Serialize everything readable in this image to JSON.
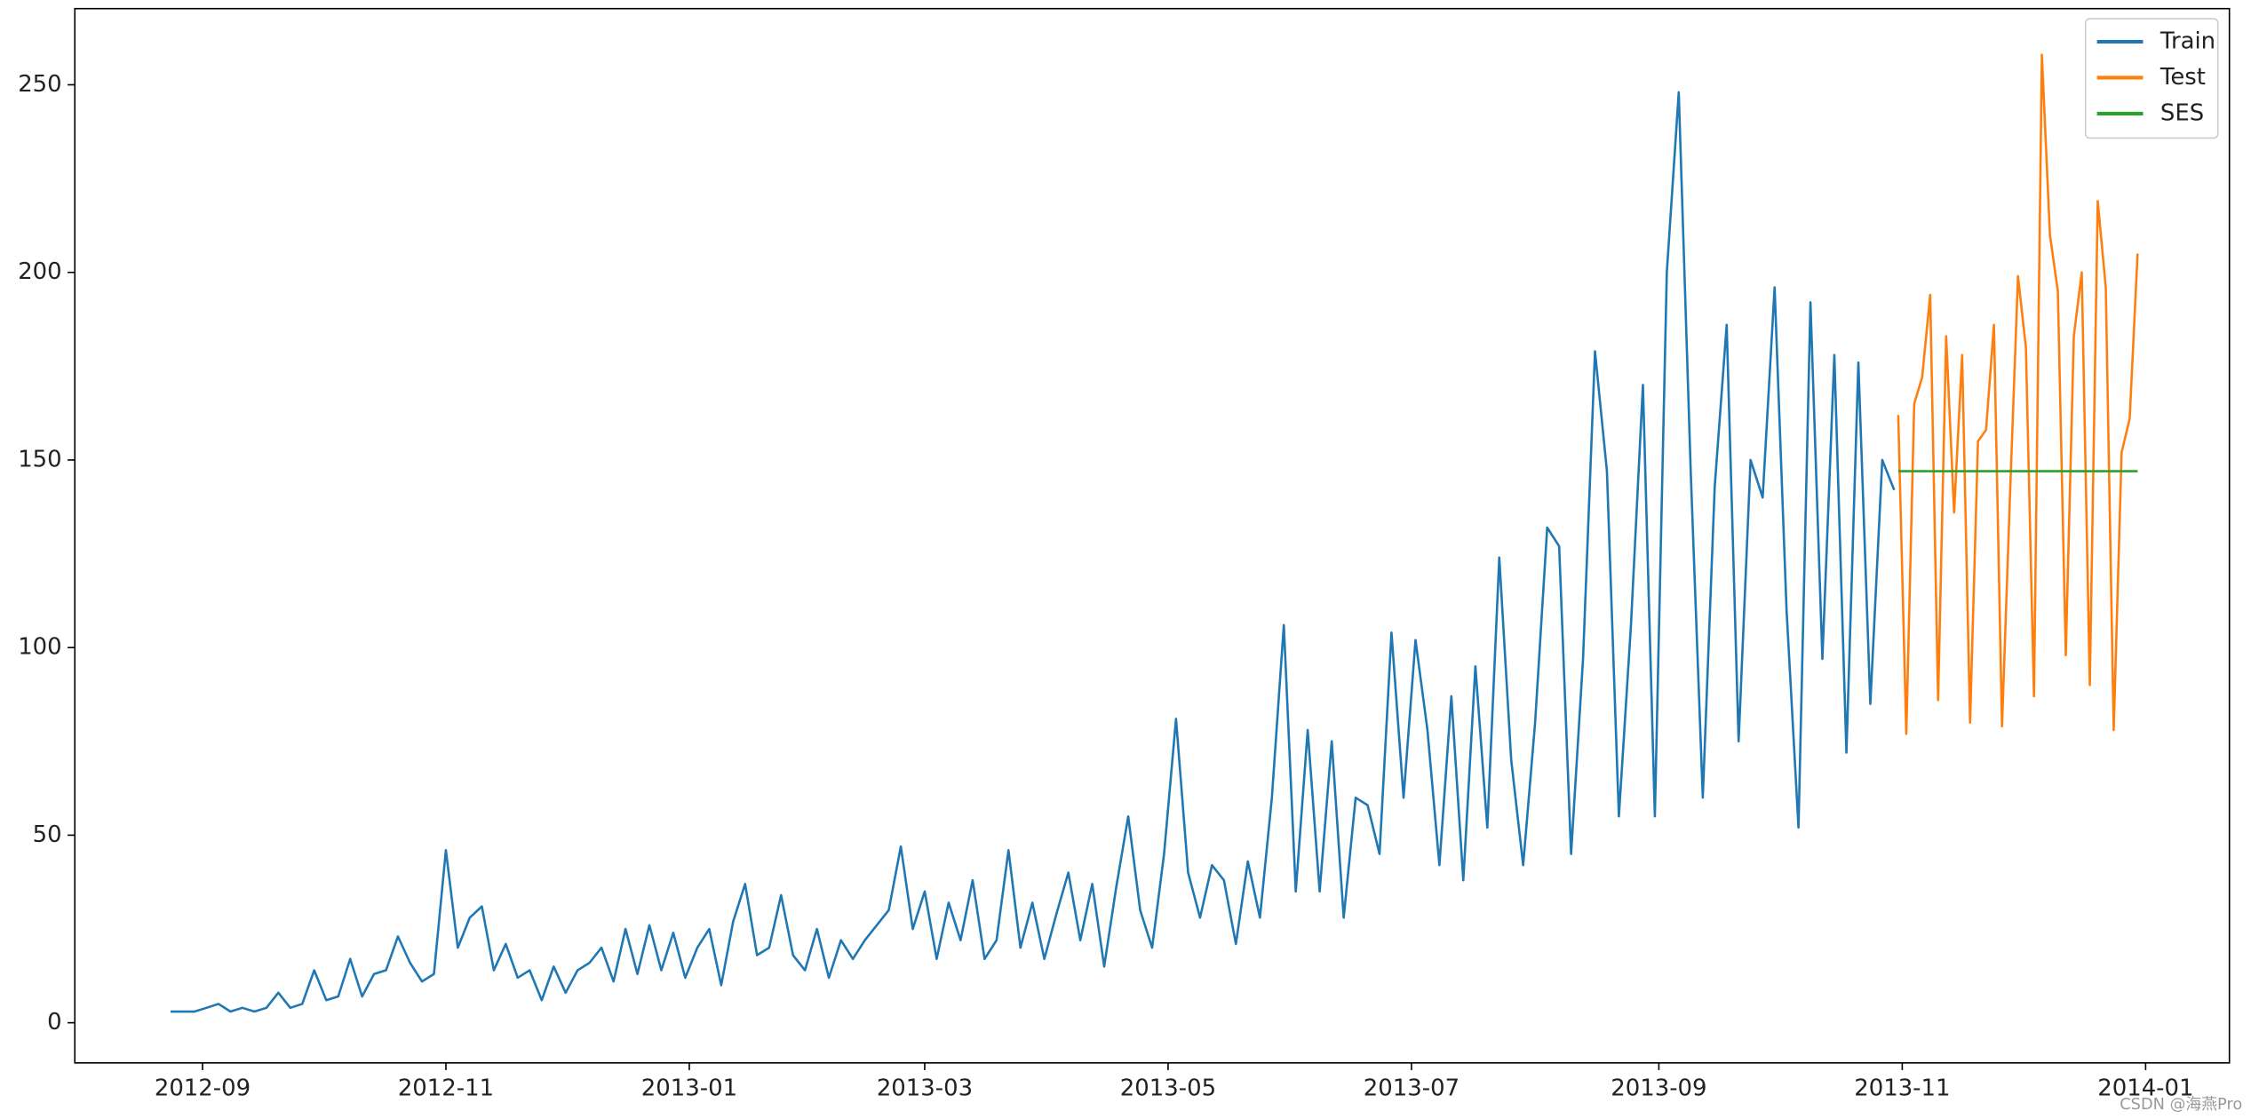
{
  "chart_data": {
    "type": "line",
    "xlim": [
      15552,
      16092
    ],
    "ylim": [
      -10.7,
      270.3
    ],
    "xticks": [
      {
        "value": 15584,
        "label": "2012-09"
      },
      {
        "value": 15645,
        "label": "2012-11"
      },
      {
        "value": 15706,
        "label": "2013-01"
      },
      {
        "value": 15765,
        "label": "2013-03"
      },
      {
        "value": 15826,
        "label": "2013-05"
      },
      {
        "value": 15887,
        "label": "2013-07"
      },
      {
        "value": 15949,
        "label": "2013-09"
      },
      {
        "value": 16010,
        "label": "2013-11"
      },
      {
        "value": 16071,
        "label": "2014-01"
      }
    ],
    "yticks": [
      0,
      50,
      100,
      150,
      200,
      250
    ],
    "legend": "upper right",
    "watermark": "CSDN @海燕Pro",
    "series": [
      {
        "name": "Train",
        "color": "#1f77b4",
        "x": [
          15576,
          15579,
          15582,
          15585,
          15588,
          15591,
          15594,
          15597,
          15600,
          15603,
          15606,
          15609,
          15612,
          15615,
          15618,
          15621,
          15624,
          15627,
          15630,
          15633,
          15636,
          15639,
          15642,
          15645,
          15648,
          15651,
          15654,
          15657,
          15660,
          15663,
          15666,
          15669,
          15672,
          15675,
          15678,
          15681,
          15684,
          15687,
          15690,
          15693,
          15696,
          15699,
          15702,
          15705,
          15708,
          15711,
          15714,
          15717,
          15720,
          15723,
          15726,
          15729,
          15732,
          15735,
          15738,
          15741,
          15744,
          15747,
          15750,
          15753,
          15756,
          15759,
          15762,
          15765,
          15768,
          15771,
          15774,
          15777,
          15780,
          15783,
          15786,
          15789,
          15792,
          15795,
          15798,
          15801,
          15804,
          15807,
          15810,
          15813,
          15816,
          15819,
          15822,
          15825,
          15828,
          15831,
          15834,
          15837,
          15840,
          15843,
          15846,
          15849,
          15852,
          15855,
          15858,
          15861,
          15864,
          15867,
          15870,
          15873,
          15876,
          15879,
          15882,
          15885,
          15888,
          15891,
          15894,
          15897,
          15900,
          15903,
          15906,
          15909,
          15912,
          15915,
          15918,
          15921,
          15924,
          15927,
          15930,
          15933,
          15936,
          15939,
          15942,
          15945,
          15948,
          15951,
          15954,
          15957,
          15960,
          15963,
          15966,
          15969,
          15972,
          15975,
          15978,
          15981,
          15984,
          15987,
          15990,
          15993,
          15996,
          15999,
          16002,
          16005,
          16008
        ],
        "values": [
          3,
          3,
          3,
          4,
          5,
          3,
          4,
          3,
          4,
          8,
          4,
          5,
          14,
          6,
          7,
          17,
          7,
          13,
          14,
          23,
          16,
          11,
          13,
          46,
          20,
          28,
          31,
          14,
          21,
          12,
          14,
          6,
          15,
          8,
          14,
          16,
          20,
          11,
          25,
          13,
          26,
          14,
          24,
          12,
          20,
          25,
          10,
          27,
          37,
          18,
          20,
          34,
          18,
          14,
          25,
          12,
          22,
          17,
          22,
          26,
          30,
          47,
          25,
          35,
          17,
          32,
          22,
          38,
          17,
          22,
          46,
          20,
          32,
          17,
          29,
          40,
          22,
          37,
          15,
          36,
          55,
          30,
          20,
          45,
          81,
          40,
          28,
          42,
          38,
          21,
          43,
          28,
          60,
          106,
          35,
          78,
          35,
          75,
          28,
          60,
          58,
          45,
          104,
          60,
          102,
          78,
          42,
          87,
          38,
          95,
          52,
          124,
          70,
          42,
          80,
          132,
          127,
          45,
          97,
          179,
          147,
          55,
          106,
          170,
          55,
          200,
          248,
          146,
          60,
          143,
          186,
          75,
          150,
          140,
          196,
          110,
          52,
          192,
          97,
          178,
          72,
          176,
          85,
          150,
          142
        ]
      },
      {
        "name": "Test",
        "color": "#ff7f0e",
        "x": [
          16009,
          16011,
          16013,
          16015,
          16017,
          16019,
          16021,
          16023,
          16025,
          16027,
          16029,
          16031,
          16033,
          16035,
          16037,
          16039,
          16041,
          16043,
          16045,
          16047,
          16049,
          16051,
          16053,
          16055,
          16057,
          16059,
          16061,
          16063,
          16065,
          16067,
          16069
        ],
        "values": [
          162,
          77,
          165,
          172,
          194,
          86,
          183,
          136,
          178,
          80,
          155,
          158,
          186,
          79,
          140,
          199,
          180,
          87,
          258,
          210,
          195,
          98,
          183,
          200,
          90,
          219,
          196,
          78,
          152,
          161,
          205
        ]
      },
      {
        "name": "SES",
        "color": "#2ca02c",
        "x": [
          16009,
          16069
        ],
        "values": [
          147,
          147
        ]
      }
    ]
  }
}
